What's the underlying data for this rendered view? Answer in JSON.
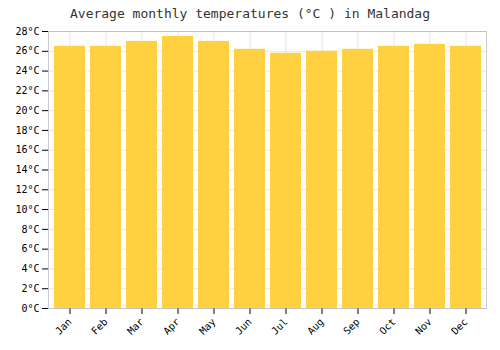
{
  "chart_data": {
    "type": "bar",
    "title": "Average monthly temperatures (°C ) in Malandag",
    "categories": [
      "Jan",
      "Feb",
      "Mar",
      "Apr",
      "May",
      "Jun",
      "Jul",
      "Aug",
      "Sep",
      "Oct",
      "Nov",
      "Dec"
    ],
    "values": [
      26.5,
      26.5,
      27.0,
      27.5,
      27.0,
      26.2,
      25.8,
      26.0,
      26.2,
      26.5,
      26.7,
      26.5
    ],
    "color": "#FFD040",
    "ylim": [
      0,
      28
    ],
    "yticks": [
      {
        "value": 0,
        "label": "0°C"
      },
      {
        "value": 2,
        "label": "2°C"
      },
      {
        "value": 4,
        "label": "4°C"
      },
      {
        "value": 6,
        "label": "6°C"
      },
      {
        "value": 8,
        "label": "8°C"
      },
      {
        "value": 10,
        "label": "10°C"
      },
      {
        "value": 12,
        "label": "12°C"
      },
      {
        "value": 14,
        "label": "14°C"
      },
      {
        "value": 16,
        "label": "16°C"
      },
      {
        "value": 18,
        "label": "18°C"
      },
      {
        "value": 20,
        "label": "20°C"
      },
      {
        "value": 22,
        "label": "22°C"
      },
      {
        "value": 24,
        "label": "24°C"
      },
      {
        "value": 26,
        "label": "26°C"
      },
      {
        "value": 28,
        "label": "28°C"
      }
    ],
    "grid": true
  }
}
